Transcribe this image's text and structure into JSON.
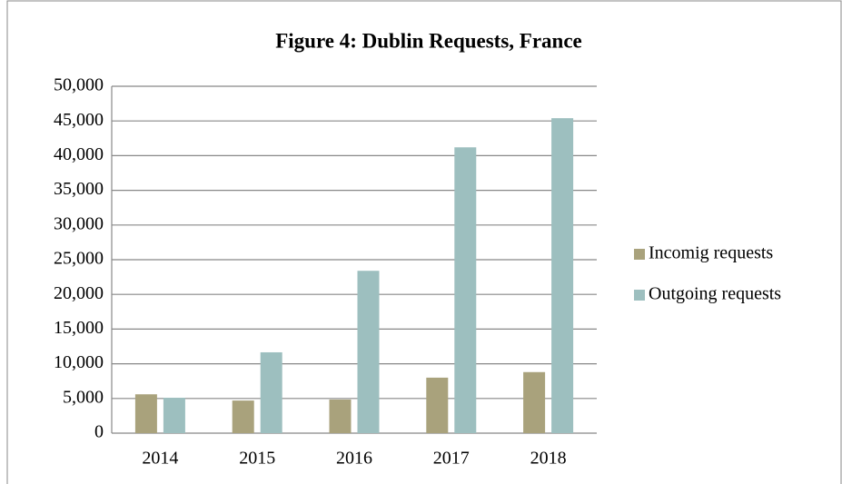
{
  "chart_data": {
    "type": "bar",
    "title": "Figure 4: Dublin Requests, France",
    "categories": [
      "2014",
      "2015",
      "2016",
      "2017",
      "2018"
    ],
    "series": [
      {
        "name": "Incomig requests",
        "color": "#a9a27c",
        "values": [
          5600,
          4700,
          4850,
          8000,
          8800
        ]
      },
      {
        "name": "Outgoing requests",
        "color": "#9dbfbf",
        "values": [
          5100,
          11650,
          23400,
          41200,
          45400
        ]
      }
    ],
    "ylim": [
      0,
      50000
    ],
    "yticks": [
      0,
      {
        "value": 5000,
        "label": "5,000"
      },
      {
        "value": 10000,
        "label": "10,000"
      },
      {
        "value": 15000,
        "label": "15,000"
      },
      {
        "value": 20000,
        "label": "20,000"
      },
      {
        "value": 25000,
        "label": "25,000"
      },
      {
        "value": 30000,
        "label": "30,000"
      },
      {
        "value": 35000,
        "label": "35,000"
      },
      {
        "value": 40000,
        "label": "40,000"
      },
      {
        "value": 45000,
        "label": "45,000"
      },
      {
        "value": 50000,
        "label": "50,000"
      }
    ],
    "grid": true,
    "legend": "right"
  }
}
